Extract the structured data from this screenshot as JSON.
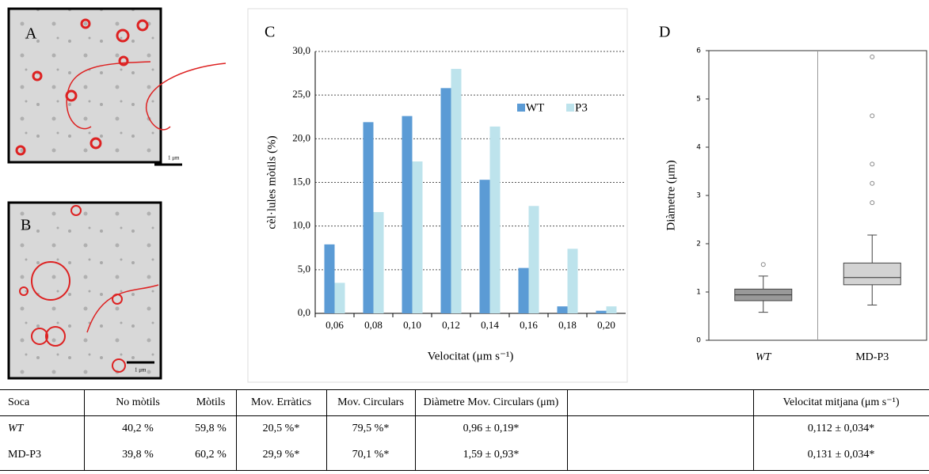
{
  "images": [
    {
      "label": "A",
      "scale": "1 μm"
    },
    {
      "label": "B",
      "scale": "1 μm"
    }
  ],
  "chart_data": [
    {
      "type": "bar",
      "label": "C",
      "ylabel": "cèl·lules mòtils (%)",
      "xlabel": "Velocitat (μm s⁻¹)",
      "categories": [
        "0,06",
        "0,08",
        "0,10",
        "0,12",
        "0,14",
        "0,16",
        "0,18",
        "0,20"
      ],
      "series": [
        {
          "name": "WT",
          "color": "#5b9bd5",
          "values": [
            7.9,
            21.9,
            22.6,
            25.8,
            15.3,
            5.2,
            0.8,
            0.3
          ]
        },
        {
          "name": "P3",
          "color": "#bde3ec",
          "values": [
            3.5,
            11.6,
            17.4,
            28.0,
            21.4,
            12.3,
            7.4,
            0.8
          ]
        }
      ],
      "ylim": [
        0,
        30
      ],
      "yticks": [
        {
          "value": 0,
          "label": "0,0"
        },
        {
          "value": 5,
          "label": "5,0"
        },
        {
          "value": 10,
          "label": "10,0"
        },
        {
          "value": 15,
          "label": "15,0"
        },
        {
          "value": 20,
          "label": "20,0"
        },
        {
          "value": 25,
          "label": "25,0"
        },
        {
          "value": 30,
          "label": "30,0"
        }
      ],
      "grid": true,
      "legend": "top-right"
    },
    {
      "type": "box",
      "label": "D",
      "ylabel": "Diàmetre (μm)",
      "categories": [
        "WT",
        "MD-P3"
      ],
      "boxes": [
        {
          "whisker_low": 0.58,
          "q1": 0.82,
          "median": 0.94,
          "q3": 1.06,
          "whisker_high": 1.33,
          "outliers": [
            1.57
          ],
          "color": "#999999"
        },
        {
          "whisker_low": 0.73,
          "q1": 1.15,
          "median": 1.3,
          "q3": 1.6,
          "whisker_high": 2.18,
          "outliers": [
            2.85,
            3.25,
            3.65,
            4.65,
            5.87
          ],
          "color": "#d3d3d3"
        }
      ],
      "ylim": [
        0,
        6
      ],
      "yticks": [
        0,
        1,
        2,
        3,
        4,
        5,
        6
      ]
    }
  ],
  "table": {
    "header": [
      "Soca",
      "No mòtils",
      "Mòtils",
      "Mov. Erràtics",
      "Mov. Circulars",
      "Diàmetre Mov. Circulars (μm)",
      "Velocitat mitjana (μm s⁻¹)"
    ],
    "rows": [
      [
        "WT",
        "40,2 %",
        "59,8 %",
        "20,5 %*",
        "79,5 %*",
        "0,96 ± 0,19*",
        "0,112 ± 0,034*"
      ],
      [
        "MD-P3",
        "39,8 %",
        "60,2 %",
        "29,9 %*",
        "70,1 %*",
        "1,59 ± 0,93*",
        "0,131 ± 0,034*"
      ]
    ]
  }
}
